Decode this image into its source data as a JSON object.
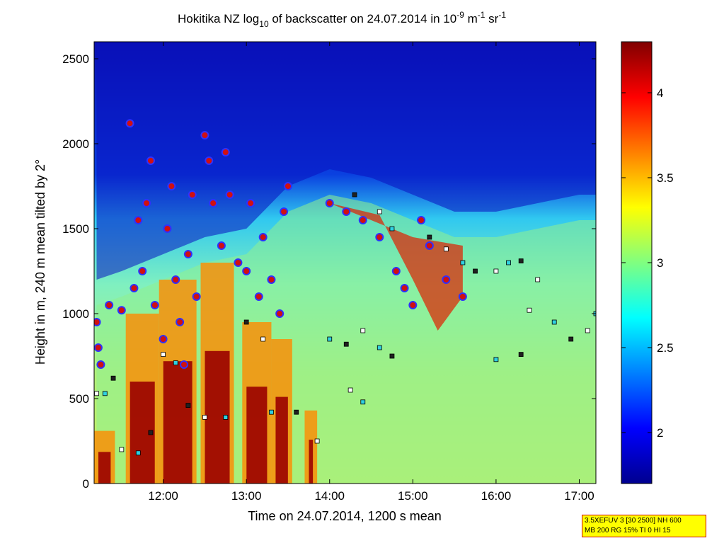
{
  "chart_data": {
    "type": "heatmap",
    "title": {
      "prefix": "Hokitika NZ log",
      "sub": "10",
      "mid": " of backscatter on 24.07.2014 in 10",
      "sup1": "-9",
      "mid2": " m",
      "sup2": "-1",
      "mid3": " sr",
      "sup3": "-1"
    },
    "xlabel": "Time on 24.07.2014, 1200 s mean",
    "ylabel": "Height in m, 240 m mean tilted by 2°",
    "x_range_hours": [
      11.17,
      17.2
    ],
    "y_range_m": [
      0,
      2600
    ],
    "x_ticks": [
      {
        "value": 12,
        "label": "12:00"
      },
      {
        "value": 13,
        "label": "13:00"
      },
      {
        "value": 14,
        "label": "14:00"
      },
      {
        "value": 15,
        "label": "15:00"
      },
      {
        "value": 16,
        "label": "16:00"
      },
      {
        "value": 17,
        "label": "17:00"
      }
    ],
    "y_ticks": [
      {
        "value": 0,
        "label": "0"
      },
      {
        "value": 500,
        "label": "500"
      },
      {
        "value": 1000,
        "label": "1000"
      },
      {
        "value": 1500,
        "label": "1500"
      },
      {
        "value": 2000,
        "label": "2000"
      },
      {
        "value": 2500,
        "label": "2500"
      }
    ],
    "colorbar": {
      "range": [
        1.7,
        4.3
      ],
      "ticks": [
        {
          "value": 2,
          "label": "2"
        },
        {
          "value": 2.5,
          "label": "2.5"
        },
        {
          "value": 3,
          "label": "3"
        },
        {
          "value": 3.5,
          "label": "3.5"
        },
        {
          "value": 4,
          "label": "4"
        }
      ],
      "colormap": "jet"
    },
    "field_description_values": {
      "background_top": 1.8,
      "boundary_layer_top_m": [
        {
          "t": 11.2,
          "h": 1050
        },
        {
          "t": 11.5,
          "h": 1100
        },
        {
          "t": 12.0,
          "h": 1200
        },
        {
          "t": 12.5,
          "h": 1300
        },
        {
          "t": 13.0,
          "h": 1350
        },
        {
          "t": 13.5,
          "h": 1600
        },
        {
          "t": 14.0,
          "h": 1700
        },
        {
          "t": 14.5,
          "h": 1650
        },
        {
          "t": 15.0,
          "h": 1550
        },
        {
          "t": 15.5,
          "h": 1450
        },
        {
          "t": 16.0,
          "h": 1450
        },
        {
          "t": 16.5,
          "h": 1500
        },
        {
          "t": 17.0,
          "h": 1550
        },
        {
          "t": 17.2,
          "h": 1550
        }
      ]
    },
    "layer_series": {
      "cloud_base_circles": [
        {
          "t": 11.2,
          "h": 950
        },
        {
          "t": 11.22,
          "h": 800
        },
        {
          "t": 11.25,
          "h": 700
        },
        {
          "t": 11.35,
          "h": 1050
        },
        {
          "t": 11.5,
          "h": 1020
        },
        {
          "t": 11.6,
          "h": 2120
        },
        {
          "t": 11.65,
          "h": 1150
        },
        {
          "t": 11.7,
          "h": 1550
        },
        {
          "t": 11.75,
          "h": 1250
        },
        {
          "t": 11.8,
          "h": 1650
        },
        {
          "t": 11.85,
          "h": 1900
        },
        {
          "t": 11.9,
          "h": 1050
        },
        {
          "t": 12.0,
          "h": 850
        },
        {
          "t": 12.05,
          "h": 1500
        },
        {
          "t": 12.1,
          "h": 1750
        },
        {
          "t": 12.15,
          "h": 1200
        },
        {
          "t": 12.2,
          "h": 950
        },
        {
          "t": 12.25,
          "h": 700
        },
        {
          "t": 12.3,
          "h": 1350
        },
        {
          "t": 12.35,
          "h": 1700
        },
        {
          "t": 12.4,
          "h": 1100
        },
        {
          "t": 12.5,
          "h": 2050
        },
        {
          "t": 12.55,
          "h": 1900
        },
        {
          "t": 12.6,
          "h": 1650
        },
        {
          "t": 12.7,
          "h": 1400
        },
        {
          "t": 12.75,
          "h": 1950
        },
        {
          "t": 12.8,
          "h": 1700
        },
        {
          "t": 12.9,
          "h": 1300
        },
        {
          "t": 13.0,
          "h": 1250
        },
        {
          "t": 13.05,
          "h": 1650
        },
        {
          "t": 13.15,
          "h": 1100
        },
        {
          "t": 13.2,
          "h": 1450
        },
        {
          "t": 13.3,
          "h": 1200
        },
        {
          "t": 13.4,
          "h": 1000
        },
        {
          "t": 13.45,
          "h": 1600
        },
        {
          "t": 13.5,
          "h": 1750
        },
        {
          "t": 14.0,
          "h": 1650
        },
        {
          "t": 14.2,
          "h": 1600
        },
        {
          "t": 14.4,
          "h": 1550
        },
        {
          "t": 14.6,
          "h": 1450
        },
        {
          "t": 14.8,
          "h": 1250
        },
        {
          "t": 14.9,
          "h": 1150
        },
        {
          "t": 15.0,
          "h": 1050
        },
        {
          "t": 15.1,
          "h": 1550
        },
        {
          "t": 15.2,
          "h": 1400
        },
        {
          "t": 15.4,
          "h": 1200
        },
        {
          "t": 15.6,
          "h": 1100
        }
      ],
      "layer_squares": [
        {
          "t": 11.2,
          "h": 530
        },
        {
          "t": 11.3,
          "h": 530
        },
        {
          "t": 11.4,
          "h": 620
        },
        {
          "t": 11.5,
          "h": 200
        },
        {
          "t": 11.7,
          "h": 180
        },
        {
          "t": 11.85,
          "h": 300
        },
        {
          "t": 12.0,
          "h": 760
        },
        {
          "t": 12.15,
          "h": 710
        },
        {
          "t": 12.3,
          "h": 460
        },
        {
          "t": 12.5,
          "h": 390
        },
        {
          "t": 12.75,
          "h": 390
        },
        {
          "t": 13.0,
          "h": 950
        },
        {
          "t": 13.2,
          "h": 850
        },
        {
          "t": 13.3,
          "h": 420
        },
        {
          "t": 13.6,
          "h": 420
        },
        {
          "t": 13.85,
          "h": 250
        },
        {
          "t": 14.0,
          "h": 850
        },
        {
          "t": 14.2,
          "h": 820
        },
        {
          "t": 14.4,
          "h": 900
        },
        {
          "t": 14.6,
          "h": 800
        },
        {
          "t": 14.75,
          "h": 750
        },
        {
          "t": 14.25,
          "h": 550
        },
        {
          "t": 14.4,
          "h": 480
        },
        {
          "t": 14.3,
          "h": 1700
        },
        {
          "t": 14.6,
          "h": 1600
        },
        {
          "t": 14.75,
          "h": 1500
        },
        {
          "t": 15.2,
          "h": 1450
        },
        {
          "t": 15.4,
          "h": 1380
        },
        {
          "t": 15.6,
          "h": 1300
        },
        {
          "t": 15.75,
          "h": 1250
        },
        {
          "t": 16.0,
          "h": 1250
        },
        {
          "t": 16.15,
          "h": 1300
        },
        {
          "t": 16.3,
          "h": 1310
        },
        {
          "t": 16.5,
          "h": 1200
        },
        {
          "t": 16.0,
          "h": 730
        },
        {
          "t": 16.3,
          "h": 760
        },
        {
          "t": 16.4,
          "h": 1020
        },
        {
          "t": 16.7,
          "h": 950
        },
        {
          "t": 16.9,
          "h": 850
        },
        {
          "t": 17.1,
          "h": 900
        },
        {
          "t": 17.2,
          "h": 1000
        }
      ]
    }
  },
  "info_box": {
    "line1": "3.5XEFUV 3 [30 2500] NH 600",
    "line2": "MB 200 RG 15% TI 0 HI 15"
  }
}
